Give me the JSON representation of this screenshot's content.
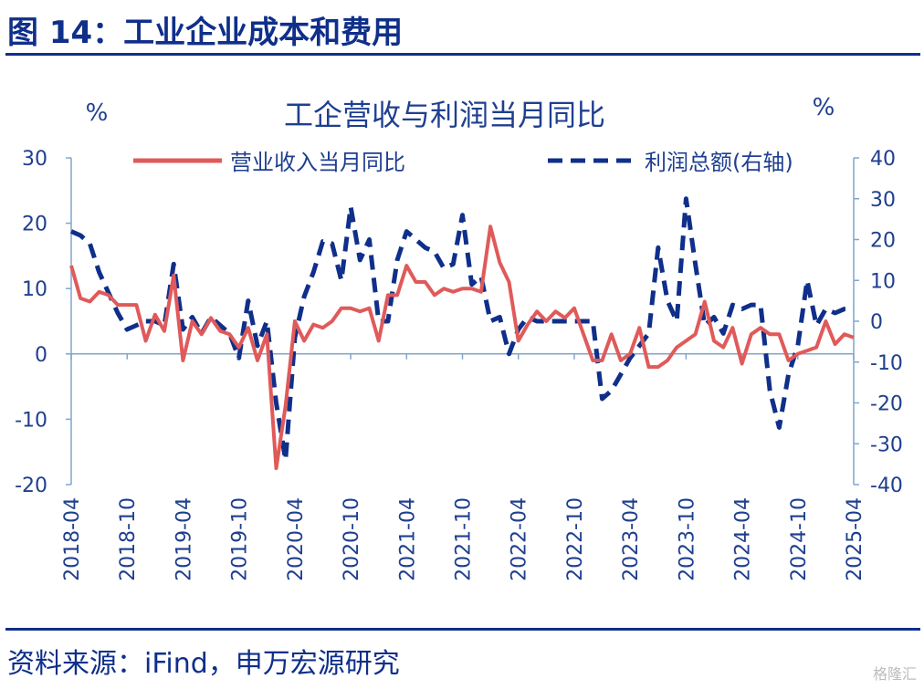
{
  "header": {
    "title": "图 14：工业企业成本和费用"
  },
  "source": "资料来源：iFind，申万宏源研究",
  "watermark": "格隆汇",
  "colors": {
    "revenue": "#e05a5a",
    "profit": "#0f2f8a",
    "axis": "#7fa6cf",
    "text": "#1f3f8f"
  },
  "chart_data": {
    "type": "line",
    "title": "工企营收与利润当月同比",
    "left_unit": "%",
    "right_unit": "%",
    "ylim_left": [
      -20,
      30
    ],
    "ylim_right": [
      -40,
      40
    ],
    "yticks_left": [
      30,
      20,
      10,
      0,
      -10,
      -20
    ],
    "yticks_right": [
      40,
      30,
      20,
      10,
      0,
      -10,
      -20,
      -30,
      -40
    ],
    "x_ticks": [
      "2018-04",
      "2018-10",
      "2019-04",
      "2019-10",
      "2020-04",
      "2020-10",
      "2021-04",
      "2021-10",
      "2022-04",
      "2022-10",
      "2023-04",
      "2023-10",
      "2024-04",
      "2024-10",
      "2025-04"
    ],
    "legend_placement": "top",
    "series": [
      {
        "name": "营业收入当月同比",
        "axis": "left",
        "style": "solid",
        "points": [
          [
            "2018-04",
            13.5
          ],
          [
            "2018-05",
            8.5
          ],
          [
            "2018-06",
            8
          ],
          [
            "2018-07",
            9.5
          ],
          [
            "2018-08",
            9
          ],
          [
            "2018-09",
            7.5
          ],
          [
            "2018-10",
            7.5
          ],
          [
            "2018-11",
            7.5
          ],
          [
            "2018-12",
            2
          ],
          [
            "2019-01",
            6
          ],
          [
            "2019-02",
            3.5
          ],
          [
            "2019-03",
            12
          ],
          [
            "2019-04",
            -1
          ],
          [
            "2019-05",
            5
          ],
          [
            "2019-06",
            3
          ],
          [
            "2019-07",
            5.5
          ],
          [
            "2019-08",
            3.5
          ],
          [
            "2019-09",
            3
          ],
          [
            "2019-10",
            1
          ],
          [
            "2019-11",
            4
          ],
          [
            "2019-12",
            -1
          ],
          [
            "2020-01",
            3
          ],
          [
            "2020-02",
            -17.5
          ],
          [
            "2020-03",
            -8
          ],
          [
            "2020-04",
            5
          ],
          [
            "2020-05",
            2
          ],
          [
            "2020-06",
            4.5
          ],
          [
            "2020-07",
            4
          ],
          [
            "2020-08",
            5
          ],
          [
            "2020-09",
            7
          ],
          [
            "2020-10",
            7
          ],
          [
            "2020-11",
            6.5
          ],
          [
            "2020-12",
            7
          ],
          [
            "2021-01",
            2
          ],
          [
            "2021-02",
            9
          ],
          [
            "2021-03",
            9
          ],
          [
            "2021-04",
            13.5
          ],
          [
            "2021-05",
            11
          ],
          [
            "2021-06",
            11
          ],
          [
            "2021-07",
            9
          ],
          [
            "2021-08",
            10
          ],
          [
            "2021-09",
            9.5
          ],
          [
            "2021-10",
            10
          ],
          [
            "2021-11",
            10
          ],
          [
            "2021-12",
            9.5
          ],
          [
            "2022-01",
            19.5
          ],
          [
            "2022-02",
            14
          ],
          [
            "2022-03",
            11
          ],
          [
            "2022-04",
            2
          ],
          [
            "2022-05",
            4.5
          ],
          [
            "2022-06",
            6.5
          ],
          [
            "2022-07",
            5
          ],
          [
            "2022-08",
            6.5
          ],
          [
            "2022-09",
            5.5
          ],
          [
            "2022-10",
            7
          ],
          [
            "2022-11",
            3
          ],
          [
            "2022-12",
            -1
          ],
          [
            "2023-01",
            -1
          ],
          [
            "2023-02",
            3
          ],
          [
            "2023-03",
            -1
          ],
          [
            "2023-04",
            0
          ],
          [
            "2023-05",
            4
          ],
          [
            "2023-06",
            -2
          ],
          [
            "2023-07",
            -2
          ],
          [
            "2023-08",
            -1
          ],
          [
            "2023-09",
            1
          ],
          [
            "2023-10",
            2
          ],
          [
            "2023-11",
            3
          ],
          [
            "2023-12",
            8
          ],
          [
            "2024-01",
            2
          ],
          [
            "2024-02",
            1
          ],
          [
            "2024-03",
            4
          ],
          [
            "2024-04",
            -1.5
          ],
          [
            "2024-05",
            3
          ],
          [
            "2024-06",
            4
          ],
          [
            "2024-07",
            3
          ],
          [
            "2024-08",
            3
          ],
          [
            "2024-09",
            -1
          ],
          [
            "2024-10",
            0
          ],
          [
            "2024-11",
            0.5
          ],
          [
            "2024-12",
            1
          ],
          [
            "2025-01",
            5
          ],
          [
            "2025-02",
            1.5
          ],
          [
            "2025-03",
            3
          ],
          [
            "2025-04",
            2.5
          ]
        ]
      },
      {
        "name": "利润总额(右轴)",
        "axis": "right",
        "style": "dashed",
        "points": [
          [
            "2018-04",
            22
          ],
          [
            "2018-05",
            21
          ],
          [
            "2018-06",
            19
          ],
          [
            "2018-07",
            12
          ],
          [
            "2018-08",
            7
          ],
          [
            "2018-09",
            2
          ],
          [
            "2018-10",
            -2
          ],
          [
            "2018-11",
            -1
          ],
          [
            "2018-12",
            0
          ],
          [
            "2019-01",
            0
          ],
          [
            "2019-02",
            -1
          ],
          [
            "2019-03",
            14
          ],
          [
            "2019-04",
            -2
          ],
          [
            "2019-05",
            1
          ],
          [
            "2019-06",
            -3
          ],
          [
            "2019-07",
            1
          ],
          [
            "2019-08",
            -1
          ],
          [
            "2019-09",
            -3
          ],
          [
            "2019-10",
            -9
          ],
          [
            "2019-11",
            5
          ],
          [
            "2019-12",
            -6
          ],
          [
            "2020-01",
            0
          ],
          [
            "2020-02",
            -20
          ],
          [
            "2020-03",
            -34
          ],
          [
            "2020-04",
            -4
          ],
          [
            "2020-05",
            6
          ],
          [
            "2020-06",
            12
          ],
          [
            "2020-07",
            19.5
          ],
          [
            "2020-08",
            19
          ],
          [
            "2020-09",
            10
          ],
          [
            "2020-10",
            28
          ],
          [
            "2020-11",
            15
          ],
          [
            "2020-12",
            20
          ],
          [
            "2021-01",
            0
          ],
          [
            "2021-02",
            0
          ],
          [
            "2021-03",
            15
          ],
          [
            "2021-04",
            22
          ],
          [
            "2021-05",
            20
          ],
          [
            "2021-06",
            18
          ],
          [
            "2021-07",
            17
          ],
          [
            "2021-08",
            13
          ],
          [
            "2021-09",
            14
          ],
          [
            "2021-10",
            26
          ],
          [
            "2021-11",
            9
          ],
          [
            "2021-12",
            11
          ],
          [
            "2022-01",
            0
          ],
          [
            "2022-02",
            1
          ],
          [
            "2022-03",
            -8
          ],
          [
            "2022-04",
            -2
          ],
          [
            "2022-05",
            1
          ],
          [
            "2022-06",
            0
          ],
          [
            "2022-07",
            0
          ],
          [
            "2022-08",
            0
          ],
          [
            "2022-09",
            0
          ],
          [
            "2022-10",
            0
          ],
          [
            "2022-11",
            0
          ],
          [
            "2022-12",
            0
          ],
          [
            "2023-01",
            -19
          ],
          [
            "2023-02",
            -17
          ],
          [
            "2023-03",
            -13
          ],
          [
            "2023-04",
            -9
          ],
          [
            "2023-05",
            -6
          ],
          [
            "2023-06",
            -3
          ],
          [
            "2023-07",
            18
          ],
          [
            "2023-08",
            5
          ],
          [
            "2023-09",
            0
          ],
          [
            "2023-10",
            30
          ],
          [
            "2023-11",
            14
          ],
          [
            "2023-12",
            -1
          ],
          [
            "2024-01",
            1
          ],
          [
            "2024-02",
            -3
          ],
          [
            "2024-03",
            4
          ],
          [
            "2024-04",
            3
          ],
          [
            "2024-05",
            4
          ],
          [
            "2024-06",
            4
          ],
          [
            "2024-07",
            -17
          ],
          [
            "2024-08",
            -26
          ],
          [
            "2024-09",
            -13
          ],
          [
            "2024-10",
            -6
          ],
          [
            "2024-11",
            10
          ],
          [
            "2024-12",
            -1
          ],
          [
            "2025-01",
            3
          ],
          [
            "2025-02",
            2
          ],
          [
            "2025-03",
            3
          ],
          [
            "2025-04",
            3
          ]
        ]
      }
    ]
  }
}
